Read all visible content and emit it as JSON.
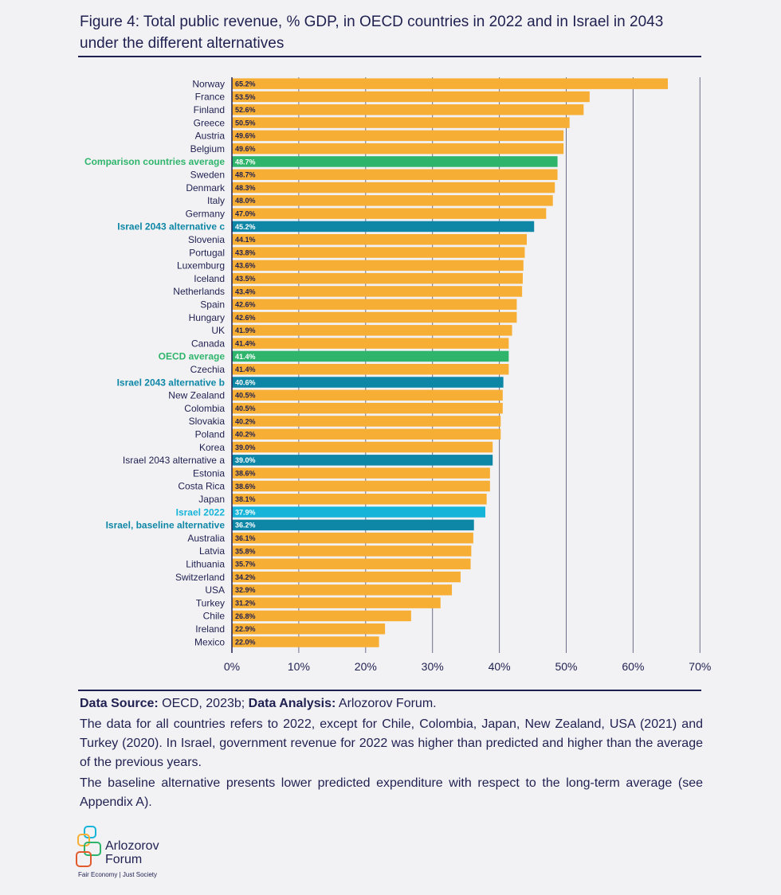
{
  "header": {
    "title": "Figure 4: Total public revenue, % GDP, in OECD countries in 2022 and in Israel in 2043 under the different alternatives"
  },
  "colors": {
    "default": "#f7ae35",
    "average": "#2fb56b",
    "israel_alt": "#0e87a6",
    "israel_2022": "#16b4d8",
    "axis": "#1f2050"
  },
  "chart_data": {
    "type": "bar",
    "orientation": "horizontal",
    "title": "Total public revenue, % GDP, in OECD countries in 2022 and in Israel in 2043 under the different alternatives",
    "xlabel": "",
    "ylabel": "",
    "xlim": [
      0,
      70
    ],
    "grid": true,
    "ticks": [
      "0%",
      "10%",
      "20%",
      "30%",
      "40%",
      "50%",
      "60%",
      "70%"
    ],
    "categories": [
      "Norway",
      "France",
      "Finland",
      "Greece",
      "Austria",
      "Belgium",
      "Comparison countries average",
      "Sweden",
      "Denmark",
      "Italy",
      "Germany",
      "Israel 2043 alternative c",
      "Slovenia",
      "Portugal",
      "Luxemburg",
      "Iceland",
      "Netherlands",
      "Spain",
      "Hungary",
      "UK",
      "Canada",
      "OECD average",
      "Czechia",
      "Israel 2043 alternative b",
      "New Zealand",
      "Colombia",
      "Slovakia",
      "Poland",
      "Korea",
      "Israel 2043 alternative a",
      "Estonia",
      "Costa Rica",
      "Japan",
      "Israel 2022",
      "Israel, baseline alternative",
      "Australia",
      "Latvia",
      "Lithuania",
      "Switzerland",
      "USA",
      "Turkey",
      "Chile",
      "Ireland",
      "Mexico"
    ],
    "values": [
      65.2,
      53.5,
      52.6,
      50.5,
      49.6,
      49.6,
      48.7,
      48.7,
      48.3,
      48.0,
      47.0,
      45.2,
      44.1,
      43.8,
      43.6,
      43.5,
      43.4,
      42.6,
      42.6,
      41.9,
      41.4,
      41.4,
      41.4,
      40.6,
      40.5,
      40.5,
      40.2,
      40.2,
      39.0,
      39.0,
      38.6,
      38.6,
      38.1,
      37.9,
      36.2,
      36.1,
      35.8,
      35.7,
      34.2,
      32.9,
      31.2,
      26.8,
      22.9,
      22.0
    ],
    "value_labels": [
      "65.2%",
      "53.5%",
      "52.6%",
      "50.5%",
      "49.6%",
      "49.6%",
      "48.7%",
      "48.7%",
      "48.3%",
      "48.0%",
      "47.0%",
      "45.2%",
      "44.1%",
      "43.8%",
      "43.6%",
      "43.5%",
      "43.4%",
      "42.6%",
      "42.6%",
      "41.9%",
      "41.4%",
      "41.4%",
      "41.4%",
      "40.6%",
      "40.5%",
      "40.5%",
      "40.2%",
      "40.2%",
      "39.0%",
      "39.0%",
      "38.6%",
      "38.6%",
      "38.1%",
      "37.9%",
      "36.2%",
      "36.1%",
      "35.8%",
      "35.7%",
      "34.2%",
      "32.9%",
      "31.2%",
      "26.8%",
      "22.9%",
      "22.0%"
    ],
    "bar_types": [
      "default",
      "default",
      "default",
      "default",
      "default",
      "default",
      "average",
      "default",
      "default",
      "default",
      "default",
      "israel_alt",
      "default",
      "default",
      "default",
      "default",
      "default",
      "default",
      "default",
      "default",
      "default",
      "average",
      "default",
      "israel_alt",
      "default",
      "default",
      "default",
      "default",
      "default",
      "israel_alt",
      "default",
      "default",
      "default",
      "israel_2022",
      "israel_alt",
      "default",
      "default",
      "default",
      "default",
      "default",
      "default",
      "default",
      "default",
      "default"
    ]
  },
  "footer": {
    "source_label": "Data Source:",
    "source_value": " OECD, 2023b; ",
    "analysis_label": "Data Analysis:",
    "analysis_value": " Arlozorov Forum.",
    "note1": "The data for all countries refers to 2022, except for Chile, Colombia, Japan, New Zealand, USA (2021) and Turkey (2020). In Israel, government revenue for 2022 was higher than predicted and higher than the average of the previous years.",
    "note2": "The baseline alternative presents lower predicted expenditure with respect to the long-term average (see Appendix A)."
  },
  "logo": {
    "name_line1": "Arlozorov",
    "name_line2": "Forum",
    "tagline": "Fair Economy | Just Society"
  }
}
